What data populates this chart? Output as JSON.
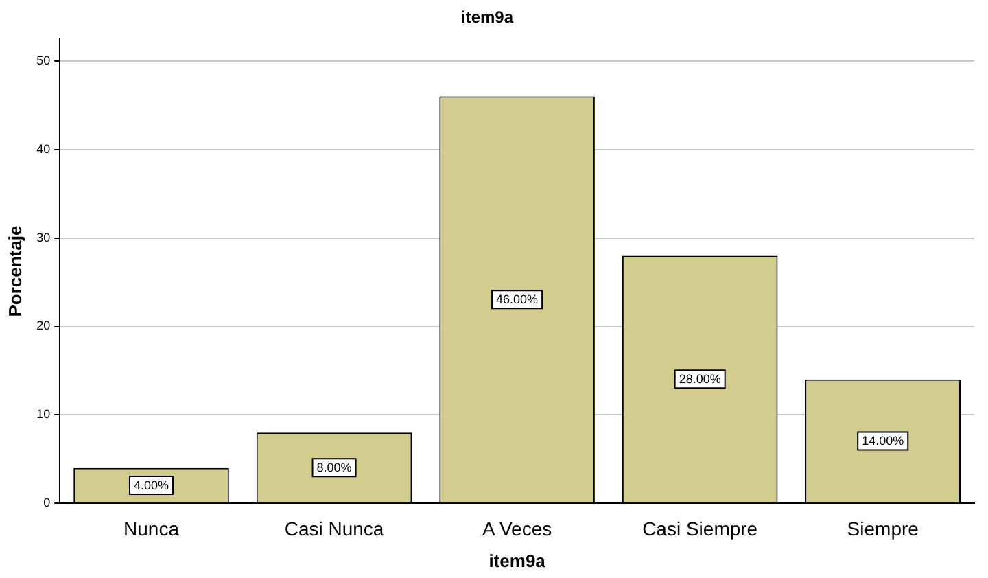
{
  "chart_data": {
    "type": "bar",
    "title": "item9a",
    "xlabel": "item9a",
    "ylabel": "Porcentaje",
    "categories": [
      "Nunca",
      "Casi Nunca",
      "A Veces",
      "Casi Siempre",
      "Siempre"
    ],
    "values": [
      4,
      8,
      46,
      28,
      14
    ],
    "value_labels": [
      "4.00%",
      "8.00%",
      "46.00%",
      "28.00%",
      "14.00%"
    ],
    "color": "#d2cc8f",
    "ylim": [
      0,
      52.5
    ],
    "yticks": [
      0,
      10,
      20,
      30,
      40,
      50
    ],
    "grid": "y",
    "legend": false
  }
}
